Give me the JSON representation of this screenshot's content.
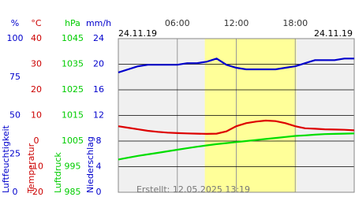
{
  "chart_data": {
    "type": "line",
    "date_left": "24.11.19",
    "date_right": "24.11.19",
    "created": "Erstellt: 12.05.2025 13:19",
    "xlim": [
      0,
      24
    ],
    "xticks": [
      {
        "value": 6,
        "label": "06:00"
      },
      {
        "value": 12,
        "label": "12:00"
      },
      {
        "value": 18,
        "label": "18:00"
      }
    ],
    "shaded": [
      8.8,
      18.1
    ],
    "axes": [
      {
        "unit": "%",
        "label": "Luftfeuchtigkeit",
        "color": "#0000cc",
        "ylim": [
          0,
          100
        ],
        "yticks": [
          0,
          25,
          50,
          75,
          100
        ]
      },
      {
        "unit": "°C",
        "label": "Temperatur",
        "color": "#cc0000",
        "ylim": [
          -20,
          40
        ],
        "yticks": [
          -20,
          -10,
          0,
          10,
          20,
          30,
          40
        ]
      },
      {
        "unit": "hPa",
        "label": "Luftdruck",
        "color": "#00cc00",
        "ylim": [
          985,
          1045
        ],
        "yticks": [
          985,
          995,
          1005,
          1015,
          1025,
          1035,
          1045
        ]
      },
      {
        "unit": "mm/h",
        "label": "Niederschlag",
        "color": "#0000cc",
        "ylim": [
          0,
          24
        ],
        "yticks": [
          0,
          4,
          8,
          12,
          16,
          20,
          24
        ],
        "grid": true
      }
    ],
    "x": [
      0,
      1,
      2,
      3,
      4,
      5,
      6,
      7,
      8,
      9,
      10,
      11,
      12,
      13,
      14,
      15,
      16,
      17,
      18,
      19,
      20,
      21,
      22,
      23,
      24
    ],
    "series": [
      {
        "axis": 0,
        "color": "#0000cc",
        "values": [
          78,
          80,
          82,
          83,
          83,
          83,
          83,
          84,
          84,
          85,
          87,
          83,
          81,
          80,
          80,
          80,
          80,
          81,
          82,
          84,
          86,
          86,
          86,
          87,
          87
        ]
      },
      {
        "axis": 1,
        "color": "#dd0000",
        "values": [
          5.8,
          5.2,
          4.6,
          4.0,
          3.6,
          3.3,
          3.1,
          3.0,
          2.9,
          2.8,
          2.9,
          3.8,
          5.8,
          7.0,
          7.6,
          8.0,
          7.8,
          7.0,
          5.8,
          5.0,
          4.8,
          4.6,
          4.5,
          4.4,
          4.2
        ]
      },
      {
        "axis": 2,
        "color": "#00dd00",
        "values": [
          997.8,
          998.5,
          999.2,
          999.8,
          1000.4,
          1001.0,
          1001.6,
          1002.2,
          1002.8,
          1003.3,
          1003.8,
          1004.2,
          1004.6,
          1005.0,
          1005.4,
          1005.8,
          1006.2,
          1006.6,
          1007.0,
          1007.2,
          1007.5,
          1007.7,
          1007.8,
          1007.9,
          1008.0
        ]
      }
    ]
  }
}
